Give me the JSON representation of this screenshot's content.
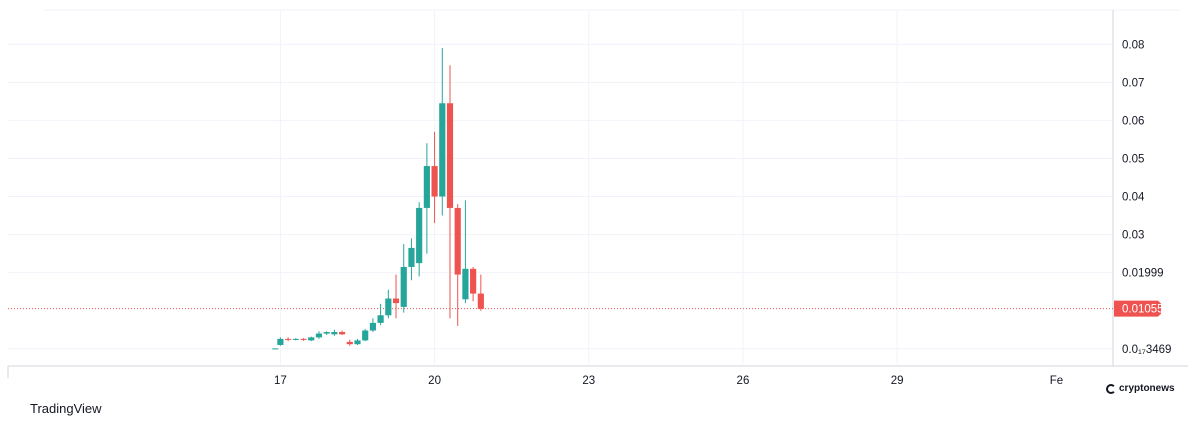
{
  "brand": "TradingView",
  "watermark": "cryptonews",
  "colors": {
    "up": "#26a69a",
    "down": "#ef5350",
    "grid": "#f0f3fa",
    "axis_text": "#131722",
    "last_price_bg": "#ef5350",
    "last_price_text": "#ffffff",
    "price_line": "#ef5350"
  },
  "chart_data": {
    "type": "candlestick",
    "title": "",
    "xlabel": "",
    "ylabel": "",
    "x_ticks": [
      "17",
      "20",
      "23",
      "26",
      "29",
      "Fe"
    ],
    "y_ticks": [
      {
        "value": 0.08,
        "label": "0.08"
      },
      {
        "value": 0.07,
        "label": "0.07"
      },
      {
        "value": 0.06,
        "label": "0.06"
      },
      {
        "value": 0.05,
        "label": "0.05"
      },
      {
        "value": 0.04,
        "label": "0.04"
      },
      {
        "value": 0.03,
        "label": "0.03"
      },
      {
        "value": 0.01999,
        "label": "0.01999"
      },
      {
        "value": 3.469e-07,
        "label": "0.0₁₇3469"
      }
    ],
    "last_price": {
      "value": 0.01055,
      "label": "0.01055"
    },
    "ylim": [
      -0.004,
      0.089
    ],
    "xlim": [
      11.7,
      33.2
    ],
    "grid": true,
    "candles": [
      {
        "day": 16.9,
        "open": 0.0,
        "high": 0.0001,
        "low": -0.0001,
        "close": 0.0001
      },
      {
        "day": 17.0,
        "open": 0.001,
        "high": 0.003,
        "low": 0.0008,
        "close": 0.0026
      },
      {
        "day": 17.15,
        "open": 0.0026,
        "high": 0.003,
        "low": 0.002,
        "close": 0.0024
      },
      {
        "day": 17.3,
        "open": 0.0024,
        "high": 0.0028,
        "low": 0.0022,
        "close": 0.0026
      },
      {
        "day": 17.45,
        "open": 0.0026,
        "high": 0.0028,
        "low": 0.0021,
        "close": 0.0024
      },
      {
        "day": 17.6,
        "open": 0.0022,
        "high": 0.0032,
        "low": 0.002,
        "close": 0.003
      },
      {
        "day": 17.75,
        "open": 0.003,
        "high": 0.0046,
        "low": 0.0026,
        "close": 0.004
      },
      {
        "day": 17.9,
        "open": 0.004,
        "high": 0.0046,
        "low": 0.0036,
        "close": 0.0044
      },
      {
        "day": 18.05,
        "open": 0.0038,
        "high": 0.005,
        "low": 0.0034,
        "close": 0.0044
      },
      {
        "day": 18.2,
        "open": 0.0044,
        "high": 0.0048,
        "low": 0.0036,
        "close": 0.0038
      },
      {
        "day": 18.35,
        "open": 0.0018,
        "high": 0.0024,
        "low": 0.0008,
        "close": 0.0012
      },
      {
        "day": 18.5,
        "open": 0.0012,
        "high": 0.0026,
        "low": 0.001,
        "close": 0.0022
      },
      {
        "day": 18.65,
        "open": 0.0022,
        "high": 0.0052,
        "low": 0.002,
        "close": 0.0048
      },
      {
        "day": 18.8,
        "open": 0.0048,
        "high": 0.008,
        "low": 0.0044,
        "close": 0.0068
      },
      {
        "day": 18.95,
        "open": 0.0068,
        "high": 0.0118,
        "low": 0.0062,
        "close": 0.0088
      },
      {
        "day": 19.1,
        "open": 0.0088,
        "high": 0.0155,
        "low": 0.008,
        "close": 0.0132
      },
      {
        "day": 19.25,
        "open": 0.0132,
        "high": 0.0195,
        "low": 0.008,
        "close": 0.012
      },
      {
        "day": 19.4,
        "open": 0.011,
        "high": 0.0275,
        "low": 0.0095,
        "close": 0.0215
      },
      {
        "day": 19.55,
        "open": 0.0215,
        "high": 0.029,
        "low": 0.018,
        "close": 0.0265
      },
      {
        "day": 19.7,
        "open": 0.0225,
        "high": 0.0385,
        "low": 0.019,
        "close": 0.037
      },
      {
        "day": 19.85,
        "open": 0.037,
        "high": 0.054,
        "low": 0.025,
        "close": 0.048
      },
      {
        "day": 20.0,
        "open": 0.048,
        "high": 0.057,
        "low": 0.033,
        "close": 0.04
      },
      {
        "day": 20.15,
        "open": 0.04,
        "high": 0.079,
        "low": 0.035,
        "close": 0.0645
      },
      {
        "day": 20.3,
        "open": 0.0645,
        "high": 0.0745,
        "low": 0.008,
        "close": 0.037
      },
      {
        "day": 20.45,
        "open": 0.037,
        "high": 0.038,
        "low": 0.006,
        "close": 0.0195
      },
      {
        "day": 20.6,
        "open": 0.013,
        "high": 0.039,
        "low": 0.012,
        "close": 0.021
      },
      {
        "day": 20.75,
        "open": 0.021,
        "high": 0.0215,
        "low": 0.0125,
        "close": 0.0145
      },
      {
        "day": 20.9,
        "open": 0.0145,
        "high": 0.0195,
        "low": 0.01,
        "close": 0.0105
      }
    ]
  }
}
